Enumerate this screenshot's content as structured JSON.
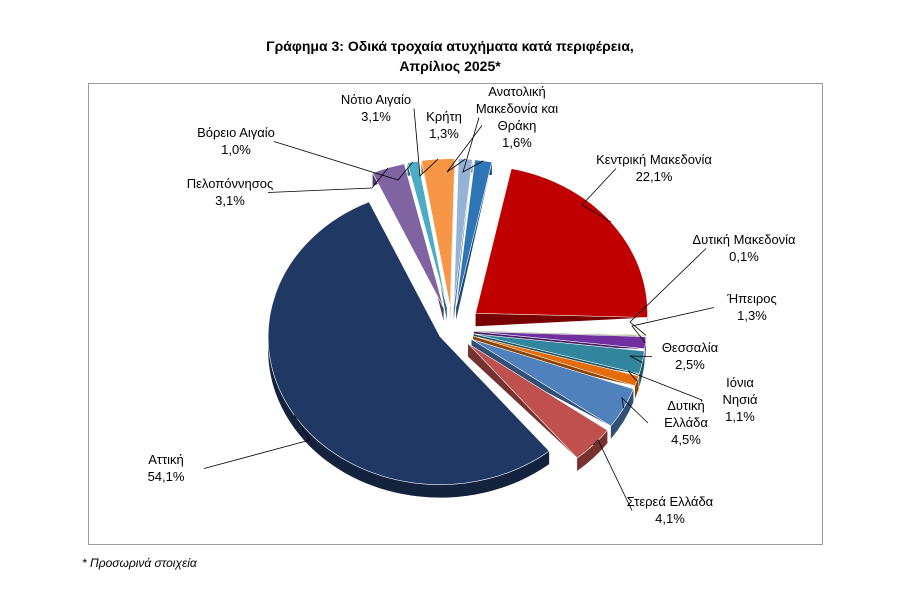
{
  "chart_data": {
    "type": "pie",
    "title_line1": "Γράφημα 3: Οδικά τροχαία ατυχήματα κατά περιφέρεια,",
    "title_line2": "Απρίλιος 2025*",
    "slices": [
      {
        "label": [
          "Κεντρική Μακεδονία"
        ],
        "value": 22.1,
        "display": "22,1%",
        "color": "#c00000"
      },
      {
        "label": [
          "Δυτική Μακεδονία"
        ],
        "value": 0.1,
        "display": "0,1%",
        "color": "#9bbb59"
      },
      {
        "label": [
          "Ήπειρος"
        ],
        "value": 1.3,
        "display": "1,3%",
        "color": "#7030a0"
      },
      {
        "label": [
          "Θεσσαλία"
        ],
        "value": 2.5,
        "display": "2,5%",
        "color": "#31859c"
      },
      {
        "label": [
          "Ιόνια",
          "Νησιά"
        ],
        "value": 1.1,
        "display": "1,1%",
        "color": "#e46c0a"
      },
      {
        "label": [
          "Δυτική",
          "Ελλάδα"
        ],
        "value": 4.5,
        "display": "4,5%",
        "color": "#4f81bd"
      },
      {
        "label": [
          "Στερεά Ελλάδα"
        ],
        "value": 4.1,
        "display": "4,1%",
        "color": "#c0504d"
      },
      {
        "label": [
          "Αττική"
        ],
        "value": 54.1,
        "display": "54,1%",
        "color": "#1f3864"
      },
      {
        "label": [
          "Πελοπόννησος"
        ],
        "value": 3.1,
        "display": "3,1%",
        "color": "#8064a2"
      },
      {
        "label": [
          "Βόρειο Αιγαίο"
        ],
        "value": 1.0,
        "display": "1,0%",
        "color": "#4bacc6"
      },
      {
        "label": [
          "Νότιο Αιγαίο"
        ],
        "value": 3.1,
        "display": "3,1%",
        "color": "#f79646"
      },
      {
        "label": [
          "Κρήτη"
        ],
        "value": 1.3,
        "display": "1,3%",
        "color": "#95b3d7"
      },
      {
        "label": [
          "Ανατολική",
          "Μακεδονία και",
          "Θράκη"
        ],
        "value": 1.6,
        "display": "1,6%",
        "color": "#2e75b6"
      }
    ]
  },
  "footnote": "* Προσωρινά στοιχεία"
}
